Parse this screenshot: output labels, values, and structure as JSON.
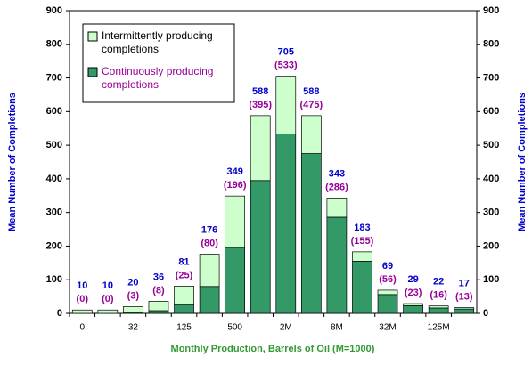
{
  "chart_data": {
    "type": "stacked-bar",
    "y_label": "Mean Number of Completions",
    "x_label": "Monthly Production, Barrels of Oil (M=1000)",
    "categories": [
      "0",
      null,
      "32",
      null,
      "125",
      null,
      "500",
      null,
      "2M",
      null,
      "8M",
      null,
      "32M",
      null,
      "125M",
      null
    ],
    "series": [
      {
        "name": "Continuously producing completions",
        "color": "#339966",
        "label_color": "#990099",
        "values": [
          0,
          0,
          3,
          8,
          25,
          80,
          196,
          395,
          533,
          475,
          286,
          155,
          56,
          23,
          16,
          13
        ],
        "value_labels": [
          "(0)",
          "(0)",
          "(3)",
          "(8)",
          "(25)",
          "(80)",
          "(196)",
          "(395)",
          "(533)",
          "(475)",
          "(286)",
          "(155)",
          "(56)",
          "(23)",
          "(16)",
          "(13)"
        ]
      },
      {
        "name": "Intermittently producing completions",
        "color": "#ccffcc",
        "label_color": "#000000",
        "values": [
          10,
          10,
          17,
          28,
          56,
          96,
          153,
          193,
          172,
          113,
          57,
          28,
          13,
          6,
          6,
          4
        ]
      }
    ],
    "totals": [
      10,
      10,
      20,
      36,
      81,
      176,
      349,
      588,
      705,
      588,
      343,
      183,
      69,
      29,
      22,
      17
    ],
    "totals_color": "#0000cc",
    "ylim": [
      0,
      900
    ],
    "yticks": [
      0,
      100,
      200,
      300,
      400,
      500,
      600,
      700,
      800,
      900
    ],
    "y2lim": [
      0,
      900
    ],
    "y2ticks": [
      0,
      100,
      200,
      300,
      400,
      500,
      600,
      700,
      800,
      900
    ],
    "axis_label_colors": {
      "y": "#0000cc",
      "x": "#339933"
    }
  }
}
